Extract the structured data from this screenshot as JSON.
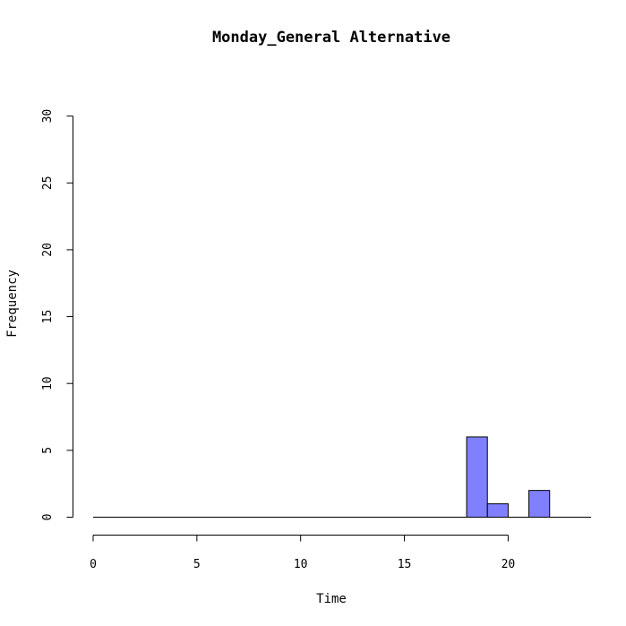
{
  "chart_data": {
    "type": "bar",
    "title": "Monday_General Alternative",
    "xlabel": "Time",
    "ylabel": "Frequency",
    "xlim": [
      0,
      24
    ],
    "ylim": [
      0,
      30
    ],
    "x_ticks": [
      0,
      5,
      10,
      15,
      20
    ],
    "y_ticks": [
      0,
      5,
      10,
      15,
      20,
      25,
      30
    ],
    "bins": [
      {
        "start": 18,
        "end": 19,
        "count": 6
      },
      {
        "start": 19,
        "end": 20,
        "count": 1
      },
      {
        "start": 21,
        "end": 22,
        "count": 2
      }
    ],
    "baseline_range": [
      0,
      24
    ],
    "bar_color": "#8080ff",
    "grid": false,
    "legend": "none"
  }
}
